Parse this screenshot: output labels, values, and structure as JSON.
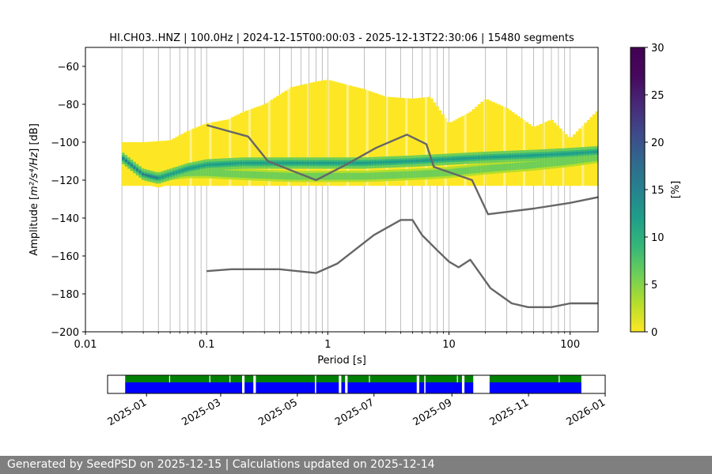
{
  "chart_data": [
    {
      "type": "heatmap",
      "title": "HI.CH03..HNZ | 100.0Hz | 2024-12-15T00:00:03 - 2025-12-13T22:30:06 | 15480 segments",
      "xlabel": "Period [s]",
      "ylabel_prefix": "Amplitude [",
      "ylabel_math": "m²/s⁴/Hz",
      "ylabel_suffix": "] [dB]",
      "x_scale": "log",
      "xlim": [
        0.01,
        170
      ],
      "ylim": [
        -200,
        -50
      ],
      "x_ticks": [
        {
          "value": 0.01,
          "label": "0.01"
        },
        {
          "value": 0.1,
          "label": "0.1"
        },
        {
          "value": 1,
          "label": "1"
        },
        {
          "value": 10,
          "label": "10"
        },
        {
          "value": 100,
          "label": "100"
        }
      ],
      "y_ticks": [
        {
          "value": -60,
          "label": "−60"
        },
        {
          "value": -80,
          "label": "−80"
        },
        {
          "value": -100,
          "label": "−100"
        },
        {
          "value": -120,
          "label": "−120"
        },
        {
          "value": -140,
          "label": "−140"
        },
        {
          "value": -160,
          "label": "−160"
        },
        {
          "value": -180,
          "label": "−180"
        },
        {
          "value": -200,
          "label": "−200"
        }
      ],
      "grid": "vertical",
      "colorbar": {
        "label": "[%]",
        "colormap": "viridis_r",
        "range": [
          0,
          30
        ],
        "ticks": [
          "0",
          "5",
          "10",
          "15",
          "20",
          "25",
          "30"
        ]
      },
      "density": {
        "core": {
          "periods": [
            0.02,
            0.025,
            0.03,
            0.04,
            0.05,
            0.07,
            0.1,
            0.2,
            0.5,
            1,
            2,
            5,
            10,
            20,
            50,
            100,
            170
          ],
          "centers": [
            -108,
            -113,
            -117,
            -119,
            -117,
            -114,
            -112,
            -111,
            -111,
            -111,
            -111,
            -110,
            -109,
            -108,
            -107,
            -106,
            -105
          ],
          "secondary": [
            -108,
            -113,
            -117,
            -119,
            -117,
            -116,
            -116,
            -117,
            -118,
            -118,
            -118,
            -117,
            -116,
            -114,
            -112,
            -110,
            -108
          ]
        },
        "envelope_top": {
          "periods": [
            0.02,
            0.03,
            0.05,
            0.07,
            0.1,
            0.15,
            0.2,
            0.3,
            0.5,
            0.8,
            1,
            1.5,
            2,
            3,
            5,
            7,
            10,
            15,
            20,
            30,
            50,
            70,
            100,
            170
          ],
          "values": [
            -100,
            -100,
            -99,
            -94,
            -90,
            -88,
            -84,
            -80,
            -71,
            -68,
            -67,
            -70,
            -72,
            -76,
            -77,
            -76,
            -90,
            -84,
            -77,
            -82,
            -92,
            -88,
            -98,
            -83
          ]
        },
        "envelope_bottom": -123
      },
      "series": [
        {
          "name": "",
          "color": "#666666",
          "x": [
            0.1,
            0.22,
            0.32,
            0.8,
            1.4,
            2.5,
            4.5,
            6.5,
            7.5,
            15.5,
            21,
            50,
            100,
            170
          ],
          "y": [
            -91,
            -97,
            -110,
            -120,
            -112,
            -103,
            -96,
            -101,
            -113,
            -120,
            -138,
            -135,
            -132,
            -129
          ]
        },
        {
          "name": "",
          "color": "#666666",
          "x": [
            0.1,
            0.16,
            0.22,
            0.4,
            0.8,
            1.2,
            2.4,
            4.0,
            5.0,
            6.0,
            8.0,
            10.0,
            12.0,
            15.0,
            22,
            33,
            45,
            70,
            100,
            170
          ],
          "y": [
            -168,
            -167,
            -167,
            -167,
            -169,
            -164,
            -149,
            -141,
            -141,
            -149,
            -157,
            -163,
            -166,
            -162,
            -177,
            -185,
            -187,
            -187,
            -185,
            -185
          ]
        }
      ]
    },
    {
      "type": "timeline",
      "xlim": [
        "2024-12-01",
        "2026-01-01"
      ],
      "x_ticks": [
        "2025-01",
        "2025-03",
        "2025-05",
        "2025-07",
        "2025-09",
        "2025-11",
        "2026-01"
      ],
      "top_color": "#008000",
      "bottom_color": "#0000ff",
      "segments": [
        [
          "2024-12-15",
          "2025-03-18"
        ],
        [
          "2025-03-20",
          "2025-03-27"
        ],
        [
          "2025-03-29",
          "2025-05-15"
        ],
        [
          "2025-05-16",
          "2025-06-03"
        ],
        [
          "2025-06-05",
          "2025-06-08"
        ],
        [
          "2025-06-10",
          "2025-08-04"
        ],
        [
          "2025-08-06",
          "2025-08-10"
        ],
        [
          "2025-08-11",
          "2025-09-09"
        ],
        [
          "2025-09-11",
          "2025-09-18"
        ],
        [
          "2025-10-01",
          "2025-12-13"
        ]
      ],
      "top_gaps": [
        "2025-01-19",
        "2025-02-20",
        "2025-03-08",
        "2025-06-27",
        "2025-09-05",
        "2025-11-25"
      ]
    }
  ],
  "footer": {
    "text": "Generated by SeedPSD on 2025-12-15 | Calculations updated on 2025-12-14"
  }
}
